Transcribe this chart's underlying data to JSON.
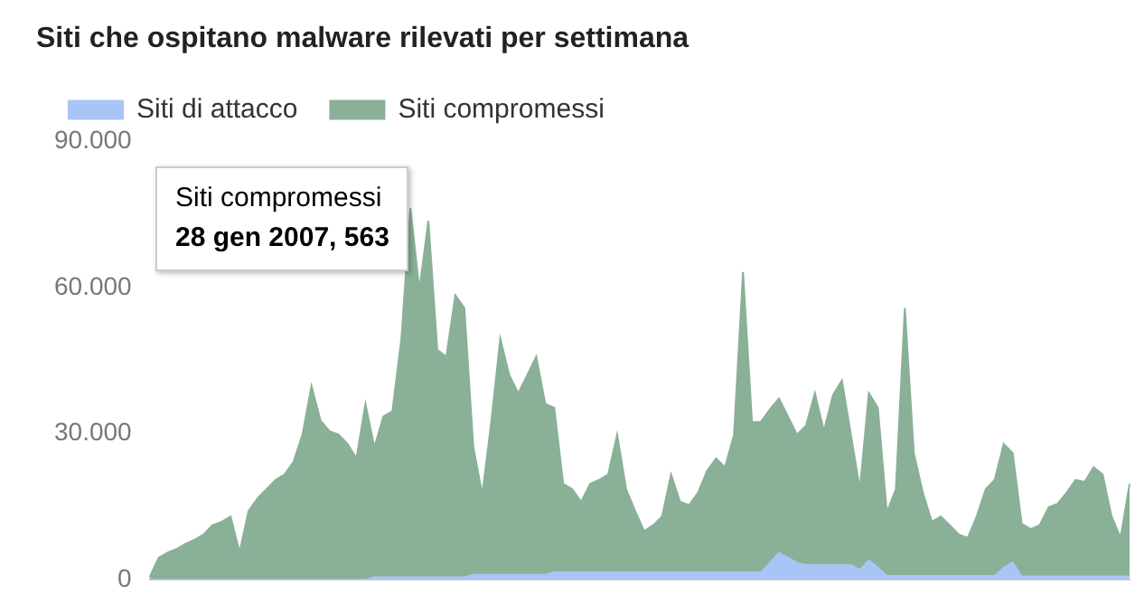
{
  "chart_data": {
    "type": "area",
    "title": "Siti che ospitano malware rilevati per settimana",
    "categories": [
      null,
      null,
      null,
      null,
      null,
      null,
      null,
      null,
      null,
      null,
      null,
      null,
      null,
      null,
      null,
      null,
      null,
      null,
      null,
      null,
      null,
      null,
      null,
      null,
      null,
      null,
      null,
      null,
      null,
      null,
      null,
      null,
      null,
      null,
      null,
      null,
      null,
      null,
      null,
      null,
      null,
      null,
      null,
      null,
      null,
      null,
      null,
      null,
      null,
      null,
      null,
      null,
      null,
      null,
      null,
      null,
      null,
      null,
      null,
      null,
      null,
      null,
      null,
      null,
      null,
      null,
      null,
      null,
      null,
      null,
      null,
      null,
      null,
      null,
      null,
      null,
      null,
      null,
      null,
      null,
      null,
      null,
      null,
      null,
      null,
      null,
      null,
      null,
      null,
      null,
      null,
      null,
      null,
      null,
      null,
      null,
      null,
      null,
      null,
      null,
      null,
      null,
      null,
      null,
      null,
      null,
      null,
      null,
      null,
      null
    ],
    "series": [
      {
        "name": "Siti di attacco",
        "color": "#a9c5f5",
        "values": [
          0,
          0,
          0,
          0,
          0,
          0,
          0,
          0,
          0,
          0,
          0,
          0,
          0,
          0,
          0,
          0,
          0,
          0,
          0,
          0,
          0,
          0,
          0,
          0,
          0,
          500,
          500,
          500,
          500,
          500,
          500,
          500,
          500,
          500,
          500,
          500,
          1000,
          1000,
          1000,
          1000,
          1000,
          1000,
          1000,
          1000,
          1000,
          1500,
          1500,
          1500,
          1500,
          1500,
          1500,
          1500,
          1500,
          1500,
          1500,
          1500,
          1500,
          1500,
          1500,
          1500,
          1500,
          1500,
          1500,
          1500,
          1500,
          1500,
          1500,
          1500,
          1500,
          3500,
          5500,
          4500,
          3500,
          3000,
          3000,
          3000,
          3000,
          3000,
          3000,
          2000,
          4000,
          2500,
          800,
          800,
          800,
          800,
          800,
          800,
          800,
          800,
          800,
          800,
          800,
          800,
          800,
          2500,
          3500,
          700,
          700,
          700,
          700,
          700,
          700,
          700,
          700,
          700,
          700,
          700,
          700,
          700
        ]
      },
      {
        "name": "Siti compromessi",
        "color": "#8ab098",
        "values": [
          563,
          4500,
          5600,
          6300,
          7400,
          8200,
          9300,
          11200,
          11900,
          13000,
          5600,
          14100,
          16700,
          18600,
          20500,
          21600,
          24200,
          29800,
          39800,
          32700,
          30500,
          29800,
          27900,
          24900,
          36100,
          27200,
          33500,
          34600,
          49500,
          76300,
          59500,
          73700,
          47200,
          45800,
          58400,
          55800,
          27200,
          17500,
          32400,
          49500,
          42000,
          38300,
          42000,
          45800,
          36100,
          35300,
          19700,
          18600,
          16000,
          19700,
          20500,
          21600,
          29800,
          18600,
          14100,
          10000,
          11200,
          13000,
          21600,
          16000,
          15300,
          17900,
          22300,
          24900,
          23100,
          29800,
          63200,
          32400,
          32400,
          35000,
          37200,
          33500,
          29800,
          31600,
          38300,
          30500,
          37900,
          40900,
          29800,
          18600,
          38300,
          35300,
          13800,
          18600,
          55800,
          26000,
          17900,
          11900,
          13000,
          11200,
          9300,
          8600,
          13000,
          18600,
          20500,
          27900,
          26000,
          11500,
          10400,
          11200,
          14900,
          15600,
          17900,
          20500,
          20100,
          23100,
          21600,
          13000,
          8600,
          19700
        ]
      }
    ],
    "ylim": [
      0,
      90000
    ],
    "yticks": [
      {
        "value": 0,
        "label": "0"
      },
      {
        "value": 30000,
        "label": "30.000"
      },
      {
        "value": 60000,
        "label": "60.000"
      },
      {
        "value": 90000,
        "label": "90.000"
      }
    ],
    "legend": "top left",
    "annotations": [
      "Siti compromessi",
      "28 gen 2007, 563"
    ]
  }
}
